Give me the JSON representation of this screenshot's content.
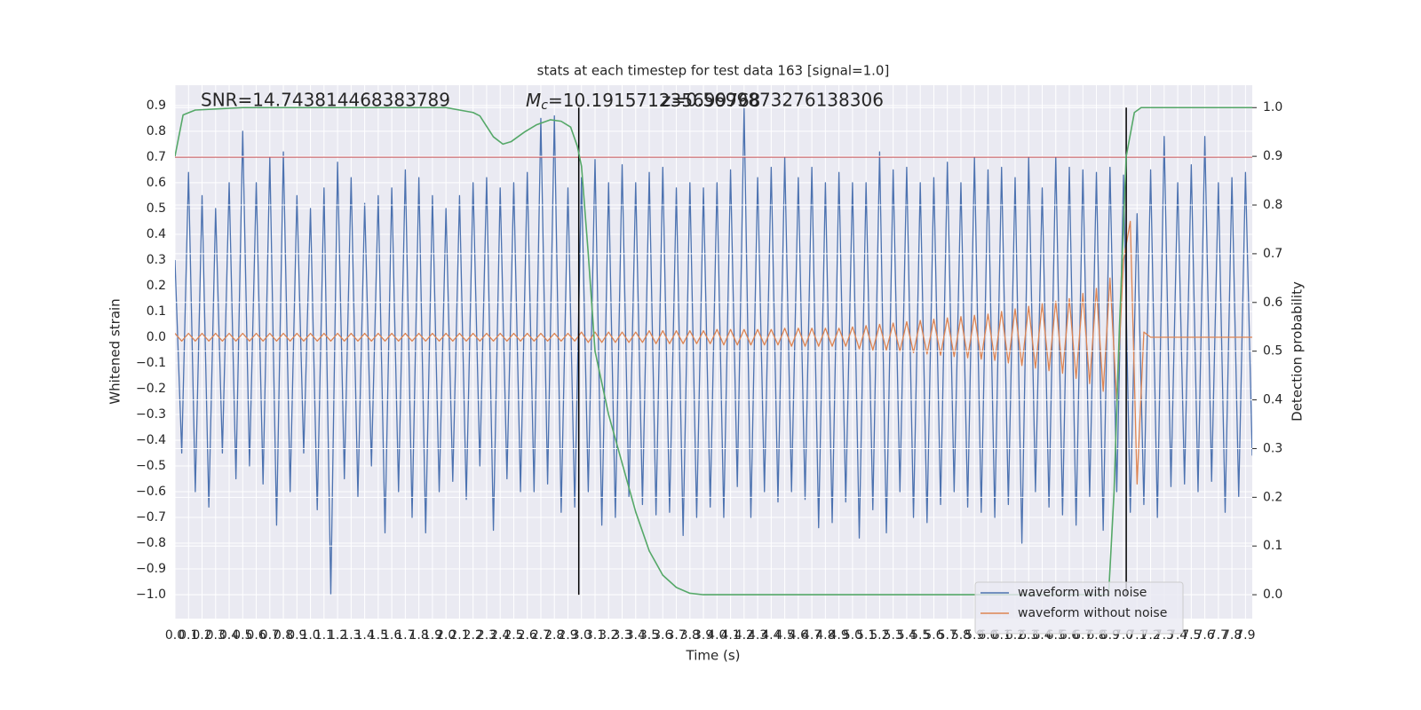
{
  "chart_data": {
    "type": "line",
    "title": "stats at each timestep for test data 163 [signal=1.0]",
    "xlabel": "Time (s)",
    "ylabel": "Whitened strain",
    "y2label": "Detection probability",
    "annotations": {
      "snr": "SNR=14.743814468383789",
      "mc": {
        "symbol": "M",
        "subscript": "c",
        "text": "=10.191571235699768"
      },
      "z": "z=0.5699873276138306"
    },
    "grid": true,
    "legend": "lower right",
    "xlim": [
      0,
      7.95
    ],
    "ylim": [
      -1.093,
      0.979
    ],
    "y2lim": [
      -0.049,
      1.046
    ],
    "xticks": [
      {
        "value": 0,
        "label": "0.0"
      },
      0.1,
      0.2,
      0.3,
      0.4,
      0.5,
      0.6,
      0.7,
      0.8,
      0.9,
      {
        "value": 1,
        "label": "1.0"
      },
      1.1,
      1.2,
      1.3,
      1.4,
      1.5,
      1.6,
      1.7,
      1.8,
      1.9,
      {
        "value": 2,
        "label": "2.0"
      },
      2.1,
      2.2,
      2.3,
      2.4,
      2.5,
      2.6,
      2.7,
      2.8,
      2.9,
      {
        "value": 3,
        "label": "3.0"
      },
      3.1,
      3.2,
      3.3,
      3.4,
      3.5,
      3.6,
      3.7,
      3.8,
      3.9,
      {
        "value": 4,
        "label": "4.0"
      },
      4.1,
      4.2,
      4.3,
      4.4,
      4.5,
      4.6,
      4.7,
      4.8,
      4.9,
      {
        "value": 5,
        "label": "5.0"
      },
      5.1,
      5.2,
      5.3,
      5.4,
      5.5,
      5.6,
      5.7,
      5.8,
      5.9,
      {
        "value": 6,
        "label": "6.0"
      },
      6.1,
      6.2,
      6.3,
      6.4,
      6.5,
      6.6,
      6.7,
      6.8,
      6.9,
      {
        "value": 7,
        "label": "7.0"
      },
      7.1,
      7.2,
      7.3,
      7.4,
      7.5,
      7.6,
      7.7,
      7.8,
      7.9
    ],
    "yticks": [
      0.9,
      0.8,
      0.7,
      0.6,
      0.5,
      0.4,
      0.3,
      0.2,
      0.1,
      {
        "value": 0,
        "label": "0.0"
      },
      {
        "value": -0.1,
        "label": "−0.1"
      },
      {
        "value": -0.2,
        "label": "−0.2"
      },
      {
        "value": -0.3,
        "label": "−0.3"
      },
      {
        "value": -0.4,
        "label": "−0.4"
      },
      {
        "value": -0.5,
        "label": "−0.5"
      },
      {
        "value": -0.6,
        "label": "−0.6"
      },
      {
        "value": -0.7,
        "label": "−0.7"
      },
      {
        "value": -0.8,
        "label": "−0.8"
      },
      {
        "value": -0.9,
        "label": "−0.9"
      },
      {
        "value": -1,
        "label": "−1.0"
      }
    ],
    "y2ticks": [
      {
        "value": 1,
        "label": "1.0"
      },
      0.9,
      0.8,
      0.7,
      0.6,
      0.5,
      0.4,
      0.3,
      0.2,
      0.1,
      {
        "value": 0,
        "label": "0.0"
      }
    ],
    "hline": {
      "value": 0.7,
      "color": "#c44e52"
    },
    "vlines": {
      "x": [
        2.98,
        7.02
      ],
      "ymin": 0,
      "ymax": 1,
      "color": "#000000"
    },
    "x": [
      0,
      0.05,
      0.1,
      0.15,
      0.2,
      0.25,
      0.3,
      0.35,
      0.4,
      0.45,
      0.5,
      0.55,
      0.6,
      0.65,
      0.7,
      0.75,
      0.8,
      0.85,
      0.9,
      0.95,
      1,
      1.05,
      1.1,
      1.15,
      1.2,
      1.25,
      1.3,
      1.35,
      1.4,
      1.45,
      1.5,
      1.55,
      1.6,
      1.65,
      1.7,
      1.75,
      1.8,
      1.85,
      1.9,
      1.95,
      2,
      2.05,
      2.1,
      2.15,
      2.2,
      2.25,
      2.3,
      2.35,
      2.4,
      2.45,
      2.5,
      2.55,
      2.6,
      2.65,
      2.7,
      2.75,
      2.8,
      2.85,
      2.9,
      2.95,
      3,
      3.05,
      3.1,
      3.15,
      3.2,
      3.25,
      3.3,
      3.35,
      3.4,
      3.45,
      3.5,
      3.55,
      3.6,
      3.65,
      3.7,
      3.75,
      3.8,
      3.85,
      3.9,
      3.95,
      4,
      4.05,
      4.1,
      4.15,
      4.2,
      4.25,
      4.3,
      4.35,
      4.4,
      4.45,
      4.5,
      4.55,
      4.6,
      4.65,
      4.7,
      4.75,
      4.8,
      4.85,
      4.9,
      4.95,
      5,
      5.05,
      5.1,
      5.15,
      5.2,
      5.25,
      5.3,
      5.35,
      5.4,
      5.45,
      5.5,
      5.55,
      5.6,
      5.65,
      5.7,
      5.75,
      5.8,
      5.85,
      5.9,
      5.95,
      6,
      6.05,
      6.1,
      6.15,
      6.2,
      6.25,
      6.3,
      6.35,
      6.4,
      6.45,
      6.5,
      6.55,
      6.6,
      6.65,
      6.7,
      6.75,
      6.8,
      6.85,
      6.9,
      6.95,
      7,
      7.05,
      7.1,
      7.15,
      7.2,
      7.25,
      7.3,
      7.35,
      7.4,
      7.45,
      7.5,
      7.55,
      7.6,
      7.65,
      7.7,
      7.75,
      7.8,
      7.85,
      7.9,
      7.95
    ],
    "series": [
      {
        "name": "waveform with noise",
        "color": "#4c72b0",
        "values": [
          0.3,
          -0.45,
          0.64,
          -0.6,
          0.55,
          -0.66,
          0.5,
          -0.45,
          0.6,
          -0.55,
          0.8,
          -0.5,
          0.6,
          -0.57,
          0.7,
          -0.73,
          0.72,
          -0.6,
          0.55,
          -0.45,
          0.5,
          -0.67,
          0.58,
          -1.0,
          0.68,
          -0.55,
          0.62,
          -0.62,
          0.52,
          -0.5,
          0.55,
          -0.76,
          0.58,
          -0.6,
          0.65,
          -0.7,
          0.62,
          -0.76,
          0.55,
          -0.6,
          0.5,
          -0.56,
          0.55,
          -0.63,
          0.6,
          -0.5,
          0.62,
          -0.75,
          0.58,
          -0.55,
          0.6,
          -0.6,
          0.64,
          -0.6,
          0.85,
          -0.57,
          0.86,
          -0.68,
          0.58,
          -0.66,
          0.62,
          -0.6,
          0.69,
          -0.73,
          0.6,
          -0.7,
          0.67,
          -0.62,
          0.6,
          -0.65,
          0.64,
          -0.69,
          0.66,
          -0.68,
          0.58,
          -0.77,
          0.6,
          -0.7,
          0.58,
          -0.66,
          0.6,
          -0.7,
          0.65,
          -0.58,
          0.89,
          -0.7,
          0.62,
          -0.6,
          0.66,
          -0.64,
          0.7,
          -0.6,
          0.62,
          -0.63,
          0.66,
          -0.74,
          0.6,
          -0.72,
          0.64,
          -0.64,
          0.6,
          -0.78,
          0.6,
          -0.67,
          0.72,
          -0.76,
          0.65,
          -0.6,
          0.66,
          -0.7,
          0.6,
          -0.72,
          0.62,
          -0.65,
          0.68,
          -0.6,
          0.6,
          -0.66,
          0.7,
          -0.68,
          0.65,
          -0.7,
          0.66,
          -0.65,
          0.62,
          -0.8,
          0.7,
          -0.6,
          0.58,
          -0.66,
          0.7,
          -0.69,
          0.66,
          -0.73,
          0.65,
          -0.62,
          0.64,
          -0.75,
          0.66,
          -0.6,
          0.63,
          -0.68,
          0.48,
          -0.65,
          0.65,
          -0.7,
          0.78,
          -0.58,
          0.6,
          -0.57,
          0.67,
          -0.6,
          0.78,
          -0.56,
          0.6,
          -0.68,
          0.62,
          -0.62,
          0.64,
          -0.46
        ]
      },
      {
        "name": "waveform without noise",
        "color": "#dd8452",
        "values": [
          0.015,
          -0.015,
          0.015,
          -0.015,
          0.015,
          -0.015,
          0.015,
          -0.015,
          0.015,
          -0.015,
          0.015,
          -0.015,
          0.015,
          -0.015,
          0.015,
          -0.015,
          0.015,
          -0.015,
          0.015,
          -0.015,
          0.015,
          -0.015,
          0.015,
          -0.015,
          0.015,
          -0.015,
          0.015,
          -0.015,
          0.015,
          -0.015,
          0.015,
          -0.015,
          0.015,
          -0.015,
          0.015,
          -0.015,
          0.015,
          -0.015,
          0.015,
          -0.015,
          0.015,
          -0.015,
          0.015,
          -0.015,
          0.015,
          -0.015,
          0.015,
          -0.015,
          0.015,
          -0.015,
          0.015,
          -0.015,
          0.015,
          -0.015,
          0.015,
          -0.015,
          0.015,
          -0.015,
          0.015,
          -0.015,
          0.02,
          -0.02,
          0.02,
          -0.02,
          0.02,
          -0.02,
          0.02,
          -0.02,
          0.02,
          -0.02,
          0.025,
          -0.025,
          0.025,
          -0.025,
          0.025,
          -0.025,
          0.025,
          -0.025,
          0.025,
          -0.025,
          0.03,
          -0.03,
          0.03,
          -0.03,
          0.03,
          -0.03,
          0.03,
          -0.03,
          0.03,
          -0.03,
          0.035,
          -0.035,
          0.035,
          -0.035,
          0.035,
          -0.035,
          0.035,
          -0.035,
          0.035,
          -0.035,
          0.04,
          -0.045,
          0.045,
          -0.05,
          0.05,
          -0.05,
          0.055,
          -0.055,
          0.06,
          -0.06,
          0.065,
          -0.065,
          0.07,
          -0.07,
          0.075,
          -0.075,
          0.08,
          -0.08,
          0.085,
          -0.085,
          0.09,
          -0.09,
          0.1,
          -0.1,
          0.11,
          -0.11,
          0.12,
          -0.12,
          0.13,
          -0.13,
          0.14,
          -0.14,
          0.15,
          -0.16,
          0.17,
          -0.18,
          0.19,
          -0.21,
          0.23,
          -0.25,
          0.3,
          0.45,
          -0.57,
          0.02,
          0,
          0,
          0,
          0,
          0,
          0,
          0,
          0,
          0,
          0,
          0,
          0,
          0,
          0,
          0,
          0
        ]
      },
      {
        "color": "#55a868",
        "axis": "y2",
        "x": [
          0,
          0.06,
          0.15,
          0.5,
          1,
          1.5,
          2,
          2.1,
          2.2,
          2.25,
          2.35,
          2.42,
          2.48,
          2.58,
          2.67,
          2.77,
          2.85,
          2.92,
          2.97,
          3.0,
          3.05,
          3.1,
          3.2,
          3.3,
          3.4,
          3.5,
          3.6,
          3.7,
          3.8,
          3.9,
          4.5,
          5.5,
          6.5,
          6.89,
          6.93,
          6.97,
          7.02,
          7.08,
          7.13,
          7.5,
          7.95
        ],
        "values": [
          0.9,
          0.985,
          0.995,
          1,
          1,
          1,
          1,
          0.995,
          0.99,
          0.983,
          0.94,
          0.925,
          0.93,
          0.95,
          0.965,
          0.975,
          0.972,
          0.96,
          0.92,
          0.88,
          0.7,
          0.5,
          0.37,
          0.27,
          0.17,
          0.09,
          0.04,
          0.015,
          0.003,
          0,
          0,
          0,
          0,
          0,
          0.21,
          0.55,
          0.9,
          0.99,
          1,
          1,
          1
        ]
      }
    ]
  }
}
